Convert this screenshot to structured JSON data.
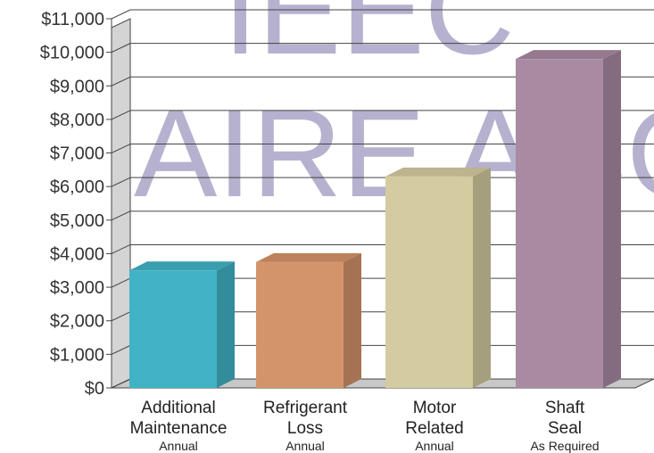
{
  "chart_data": {
    "type": "bar",
    "categories": [
      {
        "lines": [
          "Additional",
          "Maintenance"
        ],
        "sub": "Annual"
      },
      {
        "lines": [
          "Refrigerant",
          "Loss"
        ],
        "sub": "Annual"
      },
      {
        "lines": [
          "Motor",
          "Related"
        ],
        "sub": "Annual"
      },
      {
        "lines": [
          "Shaft",
          "Seal"
        ],
        "sub": "As Required"
      }
    ],
    "values": [
      3500,
      3750,
      6300,
      9800
    ],
    "colors": [
      "#41b3c6",
      "#d4946a",
      "#d4cca0",
      "#a88aa3"
    ],
    "ylim": [
      0,
      11000
    ],
    "yticks": [
      "$0",
      "$1,000",
      "$2,000",
      "$3,000",
      "$4,000",
      "$5,000",
      "$6,000",
      "$7,000",
      "$8,000",
      "$9,000",
      "$10,000",
      "$11,000"
    ],
    "grid": true,
    "watermark": {
      "line1": "ІЕЕС",
      "line2": "AIRE ACONI"
    }
  }
}
